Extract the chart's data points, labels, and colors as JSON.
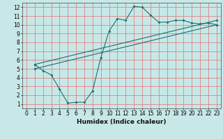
{
  "background_color": "#c8e8e8",
  "grid_color": "#e08080",
  "line_color": "#1a7070",
  "xlabel": "Humidex (Indice chaleur)",
  "xlim": [
    -0.5,
    23.5
  ],
  "ylim": [
    0.5,
    12.5
  ],
  "xticks": [
    0,
    1,
    2,
    3,
    4,
    5,
    6,
    7,
    8,
    9,
    10,
    11,
    12,
    13,
    14,
    15,
    16,
    17,
    18,
    19,
    20,
    21,
    22,
    23
  ],
  "yticks": [
    1,
    2,
    3,
    4,
    5,
    6,
    7,
    8,
    9,
    10,
    11,
    12
  ],
  "line1_x": [
    1,
    2,
    3,
    4,
    5,
    6,
    7,
    8,
    9,
    10,
    11,
    12,
    13,
    14,
    15,
    16,
    17,
    18,
    19,
    20,
    21,
    22,
    23
  ],
  "line1_y": [
    5.5,
    4.8,
    4.3,
    2.7,
    1.1,
    1.2,
    1.2,
    2.5,
    6.3,
    9.3,
    10.7,
    10.5,
    12.1,
    12.0,
    11.1,
    10.3,
    10.3,
    10.5,
    10.5,
    10.2,
    10.1,
    10.2,
    10.0
  ],
  "line2_x": [
    1,
    23
  ],
  "line2_y": [
    5.5,
    10.5
  ],
  "line3_x": [
    1,
    23
  ],
  "line3_y": [
    5.0,
    10.0
  ],
  "xlabel_fontsize": 6.5,
  "tick_fontsize": 5.5
}
